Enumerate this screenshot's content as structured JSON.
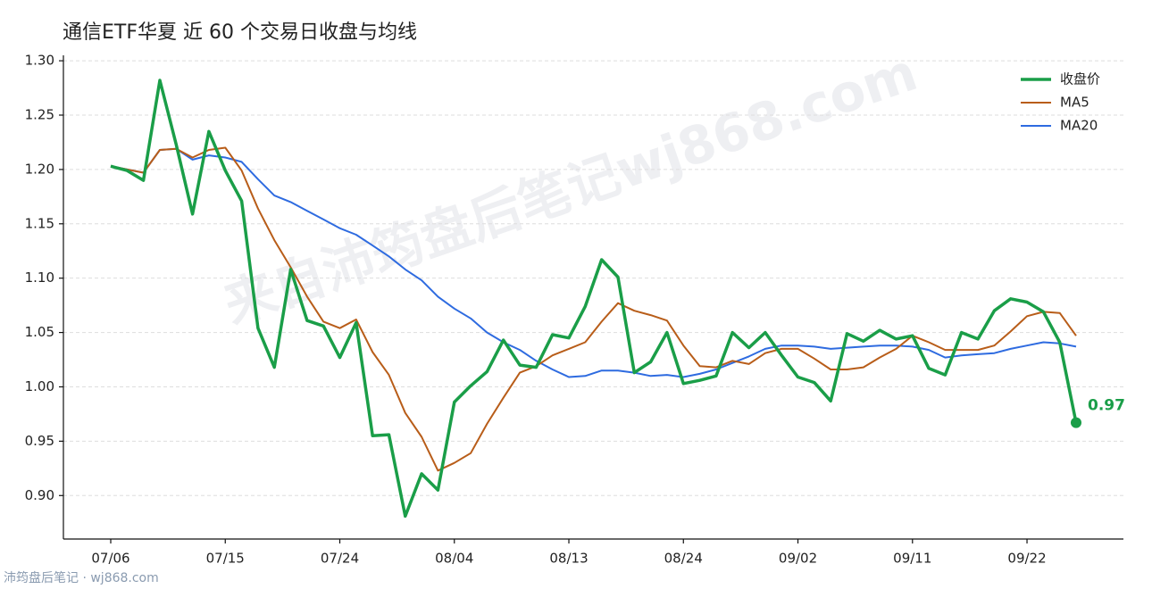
{
  "chart_data": {
    "type": "line",
    "title": "通信ETF华夏 近 60 个交易日收盘与均线",
    "categories": [
      "07/06",
      null,
      null,
      null,
      null,
      null,
      null,
      "07/15",
      null,
      null,
      null,
      null,
      null,
      null,
      "07/24",
      null,
      null,
      null,
      null,
      null,
      null,
      "08/04",
      null,
      null,
      null,
      null,
      null,
      null,
      "08/13",
      null,
      null,
      null,
      null,
      null,
      null,
      "08/24",
      null,
      null,
      null,
      null,
      null,
      null,
      "09/02",
      null,
      null,
      null,
      null,
      null,
      null,
      "09/11",
      null,
      null,
      null,
      null,
      null,
      null,
      "09/22",
      null,
      null,
      null
    ],
    "series": [
      {
        "name": "收盘价",
        "color": "#1a9e48",
        "values": [
          1.203,
          1.199,
          1.19,
          1.282,
          1.223,
          1.159,
          1.235,
          1.199,
          1.171,
          1.054,
          1.018,
          1.108,
          1.061,
          1.056,
          1.027,
          1.059,
          0.955,
          0.956,
          0.881,
          0.92,
          0.905,
          0.986,
          1.001,
          1.014,
          1.043,
          1.02,
          1.018,
          1.048,
          1.045,
          1.074,
          1.117,
          1.101,
          1.013,
          1.023,
          1.05,
          1.003,
          1.006,
          1.01,
          1.05,
          1.036,
          1.05,
          1.029,
          1.009,
          1.004,
          0.987,
          1.049,
          1.042,
          1.052,
          1.044,
          1.047,
          1.017,
          1.011,
          1.05,
          1.044,
          1.07,
          1.081,
          1.078,
          1.069,
          1.041,
          0.967
        ],
        "value_labels": [
          null,
          null,
          null,
          null,
          null,
          null,
          null,
          null,
          null,
          null,
          null,
          null,
          null,
          null,
          null,
          null,
          null,
          null,
          null,
          null,
          null,
          null,
          null,
          null,
          null,
          null,
          null,
          null,
          null,
          null,
          null,
          null,
          null,
          null,
          null,
          null,
          null,
          null,
          null,
          null,
          null,
          null,
          null,
          null,
          null,
          null,
          null,
          null,
          null,
          null,
          null,
          null,
          null,
          null,
          null,
          null,
          null,
          null,
          null,
          "0.97"
        ]
      },
      {
        "name": "MA5",
        "color": "#b85d19",
        "values": [
          1.203,
          1.2,
          1.197,
          1.218,
          1.219,
          1.211,
          1.218,
          1.22,
          1.199,
          1.164,
          1.135,
          1.11,
          1.083,
          1.06,
          1.054,
          1.062,
          1.032,
          1.011,
          0.976,
          0.954,
          0.923,
          0.93,
          0.939,
          0.966,
          0.99,
          1.013,
          1.019,
          1.029,
          1.035,
          1.041,
          1.06,
          1.077,
          1.07,
          1.066,
          1.061,
          1.038,
          1.019,
          1.018,
          1.024,
          1.021,
          1.031,
          1.035,
          1.035,
          1.026,
          1.016,
          1.016,
          1.018,
          1.027,
          1.035,
          1.047,
          1.041,
          1.034,
          1.034,
          1.034,
          1.038,
          1.051,
          1.065,
          1.069,
          1.068,
          1.047
        ]
      },
      {
        "name": "MA20",
        "color": "#2e6be0",
        "values": [
          1.203,
          1.2,
          1.197,
          1.218,
          1.219,
          1.209,
          1.213,
          1.211,
          1.207,
          1.191,
          1.176,
          1.17,
          1.162,
          1.154,
          1.146,
          1.14,
          1.13,
          1.12,
          1.108,
          1.098,
          1.083,
          1.072,
          1.063,
          1.05,
          1.041,
          1.034,
          1.024,
          1.016,
          1.009,
          1.01,
          1.015,
          1.015,
          1.013,
          1.01,
          1.011,
          1.009,
          1.012,
          1.016,
          1.022,
          1.028,
          1.035,
          1.038,
          1.038,
          1.037,
          1.035,
          1.036,
          1.037,
          1.038,
          1.038,
          1.037,
          1.034,
          1.027,
          1.029,
          1.03,
          1.031,
          1.035,
          1.038,
          1.041,
          1.04,
          1.037
        ]
      }
    ],
    "ylim": [
      0.86,
      1.305
    ],
    "yticks": [
      {
        "value": 0.9,
        "label": "0.90"
      },
      {
        "value": 0.95,
        "label": "0.95"
      },
      {
        "value": 1.0,
        "label": "1.00"
      },
      {
        "value": 1.05,
        "label": "1.05"
      },
      {
        "value": 1.1,
        "label": "1.10"
      },
      {
        "value": 1.15,
        "label": "1.15"
      },
      {
        "value": 1.2,
        "label": "1.20"
      },
      {
        "value": 1.25,
        "label": "1.25"
      },
      {
        "value": 1.3,
        "label": "1.30"
      }
    ],
    "grid": true,
    "legend": "upper right"
  },
  "watermark": "来自沛筠盘后笔记wj868.com",
  "footer": "沛筠盘后笔记 · wj868.com"
}
